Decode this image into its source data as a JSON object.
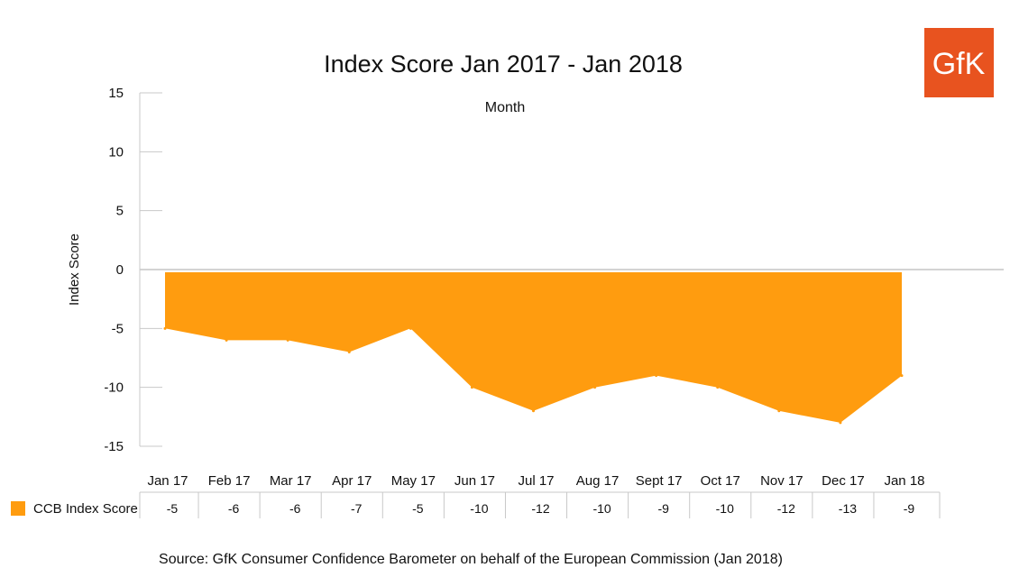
{
  "logo": {
    "text": "GfK"
  },
  "source": "Source: GfK Consumer Confidence Barometer on behalf of the European Commission (Jan 2018)",
  "colors": {
    "series": "#FF9C0F",
    "logo_bg": "#E8531F",
    "grid": "#c8c8c8",
    "zero_line": "#aaaaaa"
  },
  "chart_data": {
    "type": "area",
    "title": "Index Score Jan 2017 - Jan 2018",
    "subtitle": "Month",
    "ylabel": "Index Score",
    "ylim": [
      -15,
      15
    ],
    "yticks": [
      15,
      10,
      5,
      0,
      -5,
      -10,
      -15
    ],
    "grid": true,
    "categories": [
      "Jan 17",
      "Feb 17",
      "Mar 17",
      "Apr 17",
      "May 17",
      "Jun 17",
      "Jul 17",
      "Aug 17",
      "Sept 17",
      "Oct 17",
      "Nov 17",
      "Dec 17",
      "Jan 18"
    ],
    "series": [
      {
        "name": "CCB Index Score",
        "values": [
          -5,
          -6,
          -6,
          -7,
          -5,
          -10,
          -12,
          -10,
          -9,
          -10,
          -12,
          -13,
          -9
        ]
      }
    ],
    "table_legend": "CCB Index Score"
  }
}
